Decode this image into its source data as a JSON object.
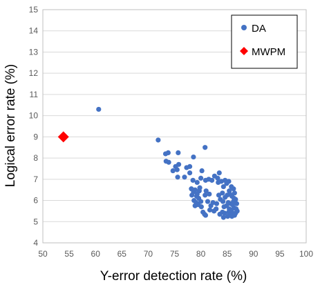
{
  "chart_data": {
    "type": "scatter",
    "title": "",
    "xlabel": "Y-error detection rate (%)",
    "ylabel": "Logical error rate (%)",
    "xlim": [
      50,
      100
    ],
    "ylim": [
      4,
      15
    ],
    "x_ticks": [
      50,
      55,
      60,
      65,
      70,
      75,
      80,
      85,
      90,
      95,
      100
    ],
    "y_ticks": [
      4,
      5,
      6,
      7,
      8,
      9,
      10,
      11,
      12,
      13,
      14,
      15
    ],
    "grid": "horizontal",
    "legend_position": "top-right",
    "series": [
      {
        "name": "DA",
        "marker": "circle",
        "color": "#4472c4",
        "points": [
          [
            60.6,
            10.3
          ],
          [
            71.9,
            8.85
          ],
          [
            73.3,
            8.2
          ],
          [
            73.8,
            8.25
          ],
          [
            73.4,
            7.85
          ],
          [
            73.9,
            7.8
          ],
          [
            75.7,
            8.25
          ],
          [
            75.2,
            7.6
          ],
          [
            75.8,
            7.7
          ],
          [
            74.7,
            7.4
          ],
          [
            75.5,
            7.45
          ],
          [
            75.6,
            7.1
          ],
          [
            76.9,
            7.1
          ],
          [
            77.3,
            7.55
          ],
          [
            77.9,
            7.6
          ],
          [
            77.9,
            7.3
          ],
          [
            78.6,
            8.05
          ],
          [
            80.2,
            7.4
          ],
          [
            80.8,
            8.5
          ],
          [
            80.0,
            7.05
          ],
          [
            78.5,
            6.95
          ],
          [
            79.3,
            6.85
          ],
          [
            79.8,
            6.6
          ],
          [
            80.9,
            6.95
          ],
          [
            81.5,
            7.0
          ],
          [
            82.1,
            6.95
          ],
          [
            82.6,
            7.15
          ],
          [
            83.2,
            7.05
          ],
          [
            83.5,
            7.3
          ],
          [
            78.2,
            6.55
          ],
          [
            78.6,
            6.4
          ],
          [
            78.3,
            6.25
          ],
          [
            78.9,
            6.5
          ],
          [
            79.3,
            6.3
          ],
          [
            79.6,
            6.1
          ],
          [
            78.7,
            6.0
          ],
          [
            79.1,
            5.9
          ],
          [
            79.5,
            5.8
          ],
          [
            78.9,
            5.75
          ],
          [
            80.0,
            5.95
          ],
          [
            80.1,
            5.7
          ],
          [
            80.8,
            6.25
          ],
          [
            81.0,
            6.45
          ],
          [
            81.6,
            6.3
          ],
          [
            81.3,
            5.95
          ],
          [
            81.9,
            5.75
          ],
          [
            82.3,
            5.9
          ],
          [
            81.7,
            5.55
          ],
          [
            82.5,
            5.5
          ],
          [
            80.4,
            5.45
          ],
          [
            80.7,
            5.35
          ],
          [
            80.9,
            5.3
          ],
          [
            83.3,
            6.85
          ],
          [
            83.9,
            6.9
          ],
          [
            84.3,
            6.65
          ],
          [
            84.6,
            6.95
          ],
          [
            84.9,
            6.8
          ],
          [
            85.3,
            6.9
          ],
          [
            85.8,
            6.65
          ],
          [
            86.2,
            6.55
          ],
          [
            86.4,
            6.35
          ],
          [
            85.4,
            6.45
          ],
          [
            84.1,
            6.35
          ],
          [
            83.4,
            6.25
          ],
          [
            83.7,
            6.05
          ],
          [
            84.2,
            5.95
          ],
          [
            84.6,
            6.15
          ],
          [
            85.0,
            6.25
          ],
          [
            85.5,
            6.3
          ],
          [
            85.9,
            6.2
          ],
          [
            86.3,
            6.1
          ],
          [
            86.6,
            6.05
          ],
          [
            85.2,
            5.9
          ],
          [
            85.7,
            5.85
          ],
          [
            86.0,
            5.8
          ],
          [
            86.5,
            5.9
          ],
          [
            86.8,
            5.85
          ],
          [
            84.4,
            5.7
          ],
          [
            84.9,
            5.75
          ],
          [
            85.4,
            5.6
          ],
          [
            85.8,
            5.55
          ],
          [
            86.3,
            5.65
          ],
          [
            86.7,
            5.6
          ],
          [
            84.1,
            5.45
          ],
          [
            84.5,
            5.4
          ],
          [
            85.3,
            5.45
          ],
          [
            85.7,
            5.35
          ],
          [
            86.1,
            5.4
          ],
          [
            86.6,
            5.4
          ],
          [
            83.6,
            5.35
          ],
          [
            84.3,
            5.2
          ],
          [
            85.1,
            5.25
          ],
          [
            85.9,
            5.25
          ],
          [
            86.4,
            5.3
          ],
          [
            86.9,
            5.5
          ],
          [
            86.2,
            5.95
          ],
          [
            83.0,
            5.85
          ],
          [
            82.9,
            5.6
          ],
          [
            79.7,
            6.45
          ],
          [
            79.2,
            6.2
          ]
        ]
      },
      {
        "name": "MWPM",
        "marker": "diamond",
        "color": "#ff0000",
        "points": [
          [
            53.9,
            9.0
          ]
        ]
      }
    ]
  }
}
